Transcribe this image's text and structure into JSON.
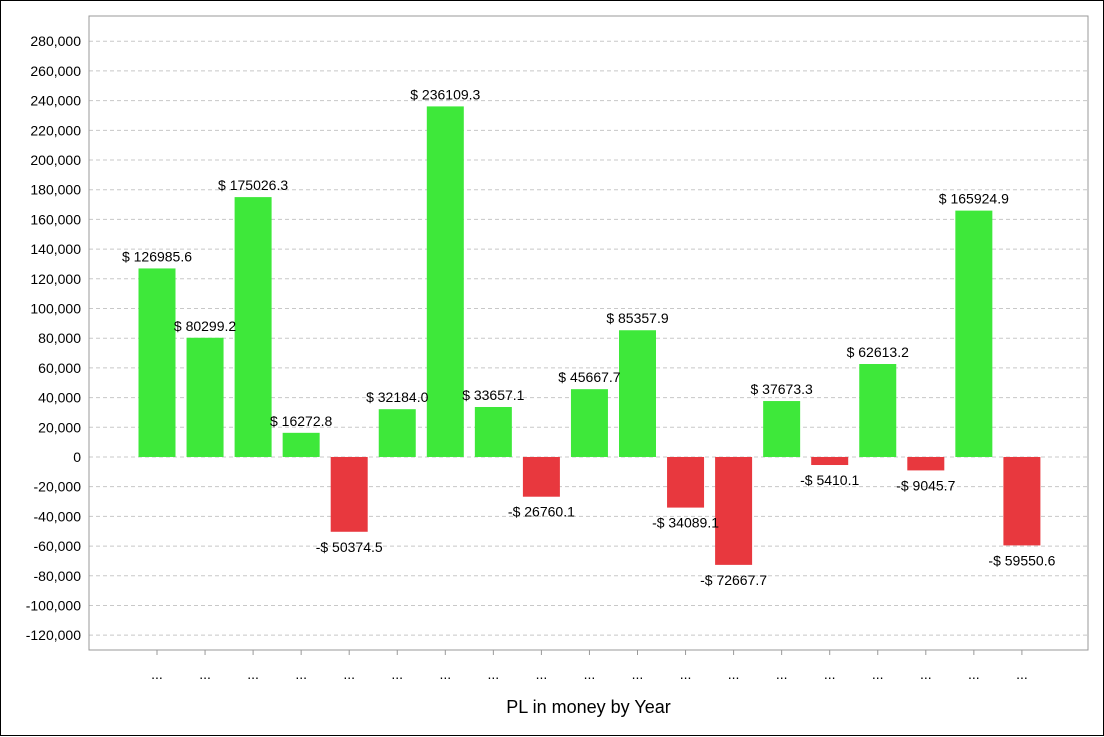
{
  "chart_data": {
    "type": "bar",
    "xlabel": "PL in money by Year",
    "ylabel": "",
    "ylim": [
      -130000,
      297000
    ],
    "yticks": [
      280000,
      260000,
      240000,
      220000,
      200000,
      180000,
      160000,
      140000,
      120000,
      100000,
      80000,
      60000,
      40000,
      20000,
      0,
      -20000,
      -40000,
      -60000,
      -80000,
      -100000,
      -120000
    ],
    "ytick_labels": [
      "280,000",
      "260,000",
      "240,000",
      "220,000",
      "200,000",
      "180,000",
      "160,000",
      "140,000",
      "120,000",
      "100,000",
      "80,000",
      "60,000",
      "40,000",
      "20,000",
      "0",
      "-20,000",
      "-40,000",
      "-60,000",
      "-80,000",
      "-100,000",
      "-120,000"
    ],
    "grid": true,
    "categories": [
      "...",
      "...",
      "...",
      "...",
      "...",
      "...",
      "...",
      "...",
      "...",
      "...",
      "...",
      "...",
      "...",
      "...",
      "...",
      "...",
      "...",
      "...",
      "..."
    ],
    "values": [
      126985.6,
      80299.2,
      175026.3,
      16272.8,
      -50374.5,
      32184.0,
      236109.3,
      33657.1,
      -26760.1,
      45667.7,
      85357.9,
      -34089.1,
      -72667.7,
      37673.3,
      -5410.1,
      62613.2,
      -9045.7,
      165924.9,
      -59550.6
    ],
    "data_labels": [
      "$ 126985.6",
      "$ 80299.2",
      "$ 175026.3",
      "$ 16272.8",
      "-$ 50374.5",
      "$ 32184.0",
      "$ 236109.3",
      "$ 33657.1",
      "-$ 26760.1",
      "$ 45667.7",
      "$ 85357.9",
      "-$ 34089.1",
      "-$ 72667.7",
      "$ 37673.3",
      "-$ 5410.1",
      "$ 62613.2",
      "-$ 9045.7",
      "$ 165924.9",
      "-$ 59550.6"
    ],
    "colors": {
      "positive": "#3ee83a",
      "negative": "#e8383e",
      "grid": "#c8c8c8",
      "axis": "#999999"
    }
  }
}
